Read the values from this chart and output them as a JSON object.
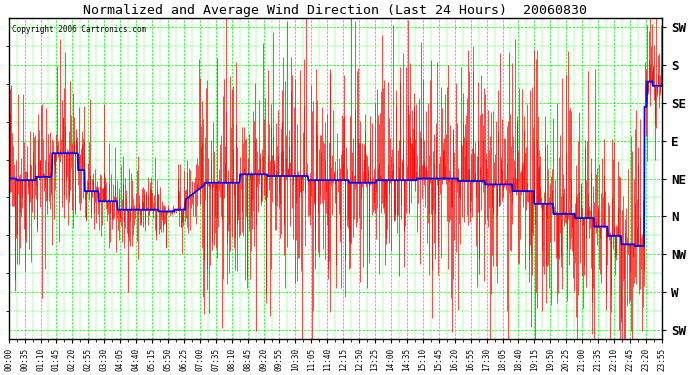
{
  "title": "Normalized and Average Wind Direction (Last 24 Hours)  20060830",
  "copyright": "Copyright 2006 Cartronics.com",
  "background_color": "#ffffff",
  "plot_bg_color": "#ffffff",
  "grid_color": "#00ff00",
  "red_color": "#ff0000",
  "blue_color": "#0000ff",
  "y_labels": [
    "SW",
    "S",
    "SE",
    "E",
    "NE",
    "N",
    "NW",
    "W",
    "SW"
  ],
  "y_values": [
    585,
    540,
    495,
    450,
    405,
    360,
    315,
    270,
    225
  ],
  "y_min": 215,
  "y_max": 595,
  "figsize": [
    6.9,
    3.75
  ],
  "dpi": 100,
  "x_tick_labels": [
    "00:00",
    "00:35",
    "01:10",
    "01:45",
    "02:20",
    "02:55",
    "03:30",
    "04:05",
    "04:40",
    "05:15",
    "05:50",
    "06:25",
    "07:00",
    "07:35",
    "08:10",
    "08:45",
    "09:20",
    "09:55",
    "10:30",
    "11:05",
    "11:40",
    "12:15",
    "12:50",
    "13:25",
    "14:00",
    "14:35",
    "15:10",
    "15:45",
    "16:20",
    "16:55",
    "17:30",
    "18:05",
    "18:40",
    "19:15",
    "19:50",
    "20:25",
    "21:00",
    "21:35",
    "22:10",
    "22:45",
    "23:20",
    "23:55"
  ]
}
